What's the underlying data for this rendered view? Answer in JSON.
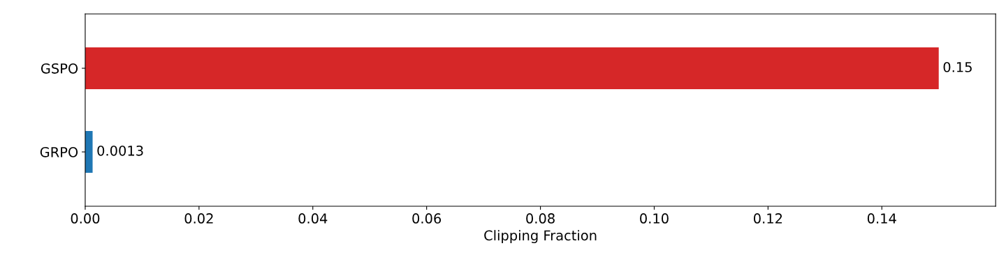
{
  "chart_data": {
    "type": "bar",
    "orientation": "horizontal",
    "xlabel": "Clipping Fraction",
    "categories": [
      "GSPO",
      "GRPO"
    ],
    "values": [
      0.15,
      0.0013
    ],
    "colors": [
      "#d62728",
      "#1f77b4"
    ],
    "value_labels": [
      "0.15",
      "0.0013"
    ],
    "xlim": [
      0,
      0.16
    ],
    "xticks": [
      {
        "value": 0,
        "label": "0.00"
      },
      {
        "value": 0.02,
        "label": "0.02"
      },
      {
        "value": 0.04,
        "label": "0.04"
      },
      {
        "value": 0.06,
        "label": "0.06"
      },
      {
        "value": 0.08,
        "label": "0.08"
      },
      {
        "value": 0.1,
        "label": "0.10"
      },
      {
        "value": 0.12,
        "label": "0.12"
      },
      {
        "value": 0.14,
        "label": "0.14"
      }
    ],
    "grid": false,
    "legend": false
  }
}
